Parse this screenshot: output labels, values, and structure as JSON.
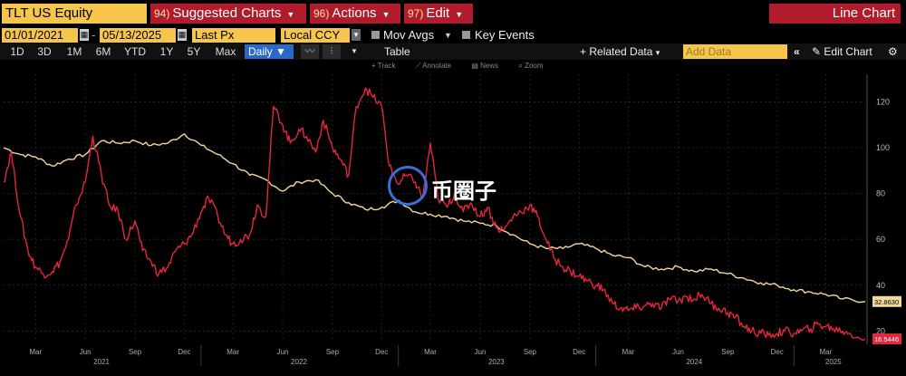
{
  "header": {
    "ticker": "TLT US Equity",
    "menus": [
      {
        "num": "94)",
        "label": "Suggested Charts"
      },
      {
        "num": "96)",
        "label": "Actions"
      },
      {
        "num": "97)",
        "label": "Edit"
      }
    ],
    "view_label": "Line Chart"
  },
  "controls": {
    "start_date": "01/01/2021",
    "end_date": "05/13/2025",
    "field": "Last Px",
    "currency": "Local CCY",
    "mov_avgs": "Mov Avgs",
    "key_events": "Key Events"
  },
  "toolbar": {
    "periods": [
      "1D",
      "3D",
      "1M",
      "6M",
      "YTD",
      "1Y",
      "5Y",
      "Max"
    ],
    "frequency": "Daily",
    "table": "Table",
    "related_data": "Related Data",
    "add_data_placeholder": "Add Data",
    "edit_chart": "Edit Chart",
    "chart_tools": [
      "Track",
      "Annotate",
      "News",
      "Zoom"
    ]
  },
  "watermark": {
    "text": "币圈子"
  },
  "colors": {
    "series_red": "#e5263b",
    "series_yellow": "#f2d89a",
    "header_red": "#b01c2b",
    "field_yellow": "#f5c64b",
    "highlight_blue": "#2b69c7"
  },
  "chart_data": {
    "type": "line",
    "x_start": "2021-01-01",
    "x_end": "2025-05-13",
    "ylim": [
      15,
      132
    ],
    "yticks": [
      20,
      40,
      60,
      80,
      100,
      120
    ],
    "xtick_labels": [
      "Mar",
      "Jun",
      "Sep",
      "Dec",
      "Mar",
      "Jun",
      "Sep",
      "Dec",
      "Mar",
      "Jun",
      "Sep",
      "Dec",
      "Mar",
      "Jun",
      "Sep",
      "Dec",
      "Mar"
    ],
    "xtick_dates": [
      "2021-03-01",
      "2021-06-01",
      "2021-09-01",
      "2021-12-01",
      "2022-03-01",
      "2022-06-01",
      "2022-09-01",
      "2022-12-01",
      "2023-03-01",
      "2023-06-01",
      "2023-09-01",
      "2023-12-01",
      "2024-03-01",
      "2024-06-01",
      "2024-09-01",
      "2024-12-01",
      "2025-03-01"
    ],
    "year_labels": [
      "2021",
      "2022",
      "2023",
      "2024",
      "2025"
    ],
    "year_dates": [
      "2021-07-01",
      "2022-07-01",
      "2023-07-01",
      "2024-07-01",
      "2025-03-15"
    ],
    "series": [
      {
        "color": "#f2d89a",
        "last_label": "32.8630",
        "points": [
          [
            "2021-01-01",
            100
          ],
          [
            "2021-02-01",
            97
          ],
          [
            "2021-03-01",
            96
          ],
          [
            "2021-04-01",
            92
          ],
          [
            "2021-05-01",
            95
          ],
          [
            "2021-06-01",
            97
          ],
          [
            "2021-07-01",
            103
          ],
          [
            "2021-08-01",
            102
          ],
          [
            "2021-09-01",
            103
          ],
          [
            "2021-10-01",
            101
          ],
          [
            "2021-11-01",
            102
          ],
          [
            "2021-12-01",
            106
          ],
          [
            "2022-01-01",
            101
          ],
          [
            "2022-02-01",
            97
          ],
          [
            "2022-03-01",
            93
          ],
          [
            "2022-04-01",
            88
          ],
          [
            "2022-05-01",
            86
          ],
          [
            "2022-06-01",
            81
          ],
          [
            "2022-07-01",
            85
          ],
          [
            "2022-08-01",
            86
          ],
          [
            "2022-09-01",
            80
          ],
          [
            "2022-10-01",
            76
          ],
          [
            "2022-11-01",
            73
          ],
          [
            "2022-12-01",
            74
          ],
          [
            "2023-01-01",
            77
          ],
          [
            "2023-02-01",
            72
          ],
          [
            "2023-03-01",
            71
          ],
          [
            "2023-04-01",
            70
          ],
          [
            "2023-05-01",
            68
          ],
          [
            "2023-06-01",
            67
          ],
          [
            "2023-07-01",
            66
          ],
          [
            "2023-08-01",
            62
          ],
          [
            "2023-09-01",
            58
          ],
          [
            "2023-10-01",
            56
          ],
          [
            "2023-11-01",
            56
          ],
          [
            "2023-12-01",
            58
          ],
          [
            "2024-01-01",
            56
          ],
          [
            "2024-02-01",
            53
          ],
          [
            "2024-03-01",
            52
          ],
          [
            "2024-04-01",
            48
          ],
          [
            "2024-05-01",
            47
          ],
          [
            "2024-06-01",
            48
          ],
          [
            "2024-07-01",
            46
          ],
          [
            "2024-08-01",
            47
          ],
          [
            "2024-09-01",
            45
          ],
          [
            "2024-10-01",
            43
          ],
          [
            "2024-11-01",
            41
          ],
          [
            "2024-12-01",
            40
          ],
          [
            "2025-01-01",
            38
          ],
          [
            "2025-02-01",
            37
          ],
          [
            "2025-03-01",
            36
          ],
          [
            "2025-04-01",
            34
          ],
          [
            "2025-05-13",
            32.86
          ]
        ]
      },
      {
        "color": "#e5263b",
        "last_label": "16.5446",
        "points": [
          [
            "2021-01-01",
            85
          ],
          [
            "2021-01-15",
            98
          ],
          [
            "2021-02-01",
            70
          ],
          [
            "2021-02-15",
            55
          ],
          [
            "2021-03-01",
            48
          ],
          [
            "2021-03-15",
            45
          ],
          [
            "2021-04-01",
            46
          ],
          [
            "2021-04-15",
            50
          ],
          [
            "2021-05-01",
            60
          ],
          [
            "2021-05-15",
            75
          ],
          [
            "2021-06-01",
            85
          ],
          [
            "2021-06-15",
            105
          ],
          [
            "2021-07-01",
            88
          ],
          [
            "2021-07-15",
            75
          ],
          [
            "2021-08-01",
            72
          ],
          [
            "2021-08-15",
            60
          ],
          [
            "2021-09-01",
            68
          ],
          [
            "2021-09-15",
            55
          ],
          [
            "2021-10-01",
            50
          ],
          [
            "2021-10-15",
            45
          ],
          [
            "2021-11-01",
            48
          ],
          [
            "2021-11-15",
            55
          ],
          [
            "2021-12-01",
            58
          ],
          [
            "2021-12-15",
            62
          ],
          [
            "2022-01-01",
            72
          ],
          [
            "2022-01-15",
            78
          ],
          [
            "2022-02-01",
            70
          ],
          [
            "2022-02-15",
            62
          ],
          [
            "2022-03-01",
            58
          ],
          [
            "2022-03-15",
            60
          ],
          [
            "2022-04-01",
            62
          ],
          [
            "2022-04-15",
            75
          ],
          [
            "2022-05-01",
            70
          ],
          [
            "2022-05-15",
            118
          ],
          [
            "2022-06-01",
            110
          ],
          [
            "2022-06-15",
            102
          ],
          [
            "2022-07-01",
            108
          ],
          [
            "2022-07-15",
            105
          ],
          [
            "2022-08-01",
            98
          ],
          [
            "2022-08-15",
            112
          ],
          [
            "2022-09-01",
            100
          ],
          [
            "2022-09-15",
            95
          ],
          [
            "2022-10-01",
            88
          ],
          [
            "2022-10-15",
            118
          ],
          [
            "2022-11-01",
            126
          ],
          [
            "2022-11-15",
            122
          ],
          [
            "2022-12-01",
            118
          ],
          [
            "2022-12-15",
            92
          ],
          [
            "2023-01-01",
            84
          ],
          [
            "2023-01-15",
            88
          ],
          [
            "2023-02-01",
            85
          ],
          [
            "2023-02-15",
            78
          ],
          [
            "2023-03-01",
            102
          ],
          [
            "2023-03-15",
            78
          ],
          [
            "2023-04-01",
            74
          ],
          [
            "2023-04-15",
            80
          ],
          [
            "2023-05-01",
            72
          ],
          [
            "2023-05-15",
            76
          ],
          [
            "2023-06-01",
            70
          ],
          [
            "2023-06-15",
            74
          ],
          [
            "2023-07-01",
            65
          ],
          [
            "2023-07-15",
            64
          ],
          [
            "2023-08-01",
            70
          ],
          [
            "2023-08-15",
            72
          ],
          [
            "2023-09-01",
            75
          ],
          [
            "2023-09-15",
            70
          ],
          [
            "2023-10-01",
            60
          ],
          [
            "2023-10-15",
            52
          ],
          [
            "2023-11-01",
            48
          ],
          [
            "2023-11-15",
            46
          ],
          [
            "2023-12-01",
            44
          ],
          [
            "2023-12-15",
            42
          ],
          [
            "2024-01-01",
            40
          ],
          [
            "2024-01-15",
            38
          ],
          [
            "2024-02-01",
            32
          ],
          [
            "2024-02-15",
            30
          ],
          [
            "2024-03-01",
            29
          ],
          [
            "2024-03-15",
            30
          ],
          [
            "2024-04-01",
            31
          ],
          [
            "2024-04-15",
            32
          ],
          [
            "2024-05-01",
            30
          ],
          [
            "2024-05-15",
            34
          ],
          [
            "2024-06-01",
            33
          ],
          [
            "2024-06-15",
            35
          ],
          [
            "2024-07-01",
            34
          ],
          [
            "2024-07-15",
            36
          ],
          [
            "2024-08-01",
            32
          ],
          [
            "2024-08-15",
            30
          ],
          [
            "2024-09-01",
            28
          ],
          [
            "2024-09-15",
            26
          ],
          [
            "2024-10-01",
            22
          ],
          [
            "2024-10-15",
            20
          ],
          [
            "2024-11-01",
            19
          ],
          [
            "2024-11-15",
            18
          ],
          [
            "2024-12-01",
            19
          ],
          [
            "2024-12-15",
            20
          ],
          [
            "2025-01-01",
            19
          ],
          [
            "2025-01-15",
            20
          ],
          [
            "2025-02-01",
            21
          ],
          [
            "2025-02-15",
            23
          ],
          [
            "2025-03-01",
            22
          ],
          [
            "2025-03-15",
            21
          ],
          [
            "2025-04-01",
            20
          ],
          [
            "2025-04-15",
            19
          ],
          [
            "2025-05-13",
            16.54
          ]
        ]
      }
    ]
  }
}
